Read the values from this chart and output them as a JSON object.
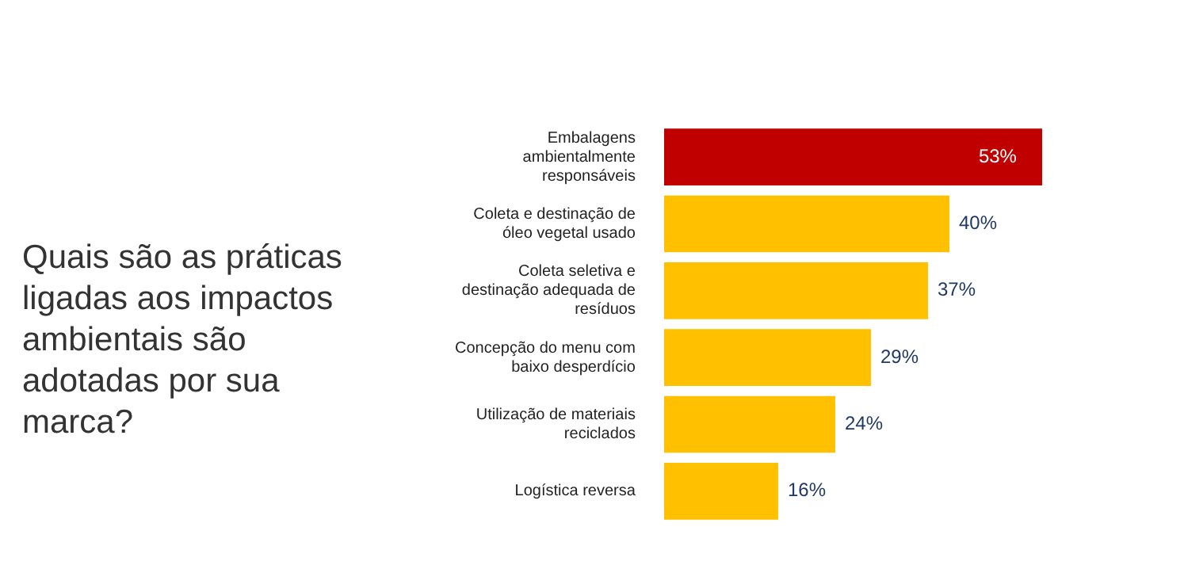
{
  "chart_data": {
    "type": "bar",
    "orientation": "horizontal",
    "title": "Quais são as práticas ligadas aos impactos ambientais são adotadas por sua marca?",
    "categories": [
      "Embalagens ambientalmente responsáveis",
      "Coleta e destinação de óleo vegetal usado",
      "Coleta seletiva e destinação adequada de resíduos",
      "Concepção do menu com baixo desperdício",
      "Utilização de materiais reciclados",
      "Logística reversa"
    ],
    "values": [
      53,
      40,
      37,
      29,
      24,
      16
    ],
    "colors": [
      "#c00000",
      "#ffc000",
      "#ffc000",
      "#ffc000",
      "#ffc000",
      "#ffc000"
    ],
    "value_labels": [
      "53%",
      "40%",
      "37%",
      "29%",
      "24%",
      "16%"
    ],
    "grid": false,
    "legend": false
  }
}
